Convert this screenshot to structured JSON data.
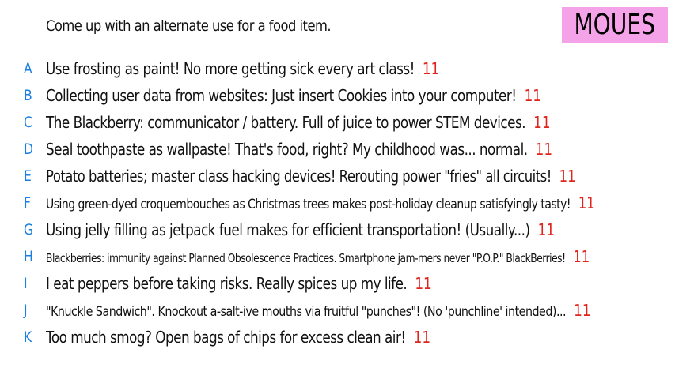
{
  "prompt": "Come up with an alternate use for a food item.",
  "player": {
    "name": "MOUES",
    "badge_color": "#f5a3e9"
  },
  "colors": {
    "letter": "#1a7fe0",
    "score": "#e0241b"
  },
  "answers": [
    {
      "letter": "A",
      "text": "Use frosting as paint! No more getting sick every art class!",
      "score": "11"
    },
    {
      "letter": "B",
      "text": "Collecting user data from websites: Just insert Cookies into your computer!",
      "score": "11"
    },
    {
      "letter": "C",
      "text": "The Blackberry: communicator / battery. Full of juice to power STEM devices.",
      "score": "11"
    },
    {
      "letter": "D",
      "text": "Seal toothpaste as wallpaste! That's food, right? My childhood was... normal.",
      "score": "11"
    },
    {
      "letter": "E",
      "text": "Potato batteries; master class hacking devices! Rerouting power \"fries\" all circuits!",
      "score": "11"
    },
    {
      "letter": "F",
      "text": "Using green-dyed croquembouches as Christmas trees makes post-holiday cleanup satisfyingly tasty!",
      "score": "11"
    },
    {
      "letter": "G",
      "text": "Using jelly filling as jetpack fuel makes for efficient transportation! (Usually...)",
      "score": "11"
    },
    {
      "letter": "H",
      "text": "Blackberries: immunity against Planned Obsolescence Practices. Smartphone jam-mers never \"P.O.P.\" BlackBerries!",
      "score": "11"
    },
    {
      "letter": "I",
      "text": "I eat peppers before taking risks. Really spices up my life.",
      "score": "11"
    },
    {
      "letter": "J",
      "text": "\"Knuckle Sandwich\". Knockout a-salt-ive mouths via fruitful \"punches\"! (No 'punchline' intended)...",
      "score": "11"
    },
    {
      "letter": "K",
      "text": "Too much smog? Open bags of chips for excess clean air!",
      "score": "11"
    }
  ]
}
